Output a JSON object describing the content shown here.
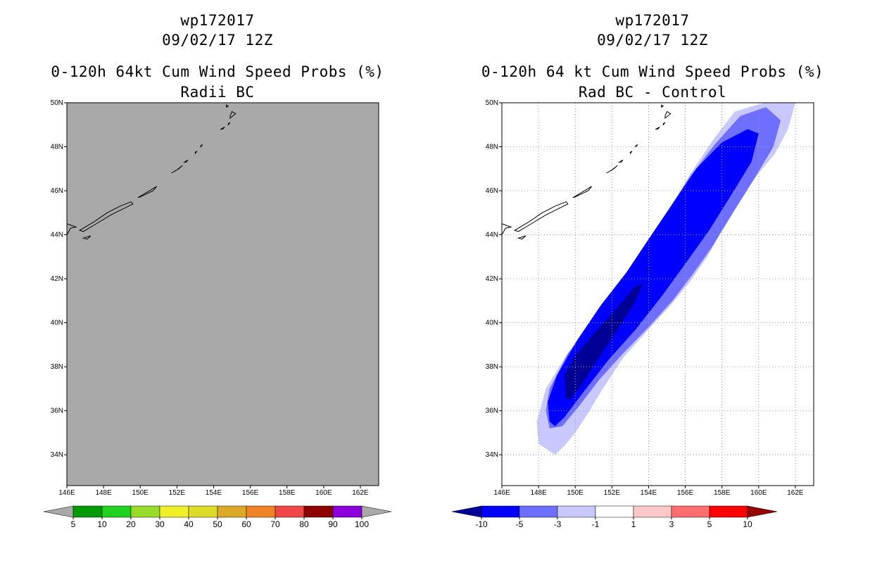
{
  "chart_data": [
    {
      "type": "heatmap",
      "storm_id": "wp172017",
      "date_time": "09/02/17 12Z",
      "title": "0-120h 64kt Cum Wind Speed Probs (%)",
      "subtitle": "Radii BC",
      "xlabel": "",
      "ylabel": "",
      "x_ticks": [
        "146E",
        "148E",
        "150E",
        "152E",
        "154E",
        "156E",
        "158E",
        "160E",
        "162E"
      ],
      "y_ticks": [
        "34N",
        "36N",
        "38N",
        "40N",
        "42N",
        "44N",
        "46N",
        "48N",
        "50N"
      ],
      "xlim": [
        146,
        163
      ],
      "ylim": [
        32.6,
        50
      ],
      "grid": false,
      "colorbar": {
        "labels": [
          "5",
          "10",
          "20",
          "30",
          "40",
          "50",
          "60",
          "70",
          "80",
          "90",
          "100"
        ],
        "colors": [
          "#049a04",
          "#1ed21e",
          "#96dc28",
          "#f0f028",
          "#dcdc28",
          "#dcaa28",
          "#f08228",
          "#f04646",
          "#8c0000",
          "#8c00dc"
        ]
      },
      "field": "uniform missing (gray)",
      "missing_color": "#a9a9a9"
    },
    {
      "type": "heatmap",
      "storm_id": "wp172017",
      "date_time": "09/02/17 12Z",
      "title": "0-120h 64 kt Cum Wind Speed Probs (%)",
      "subtitle": "Rad BC - Control",
      "xlabel": "",
      "ylabel": "",
      "x_ticks": [
        "146E",
        "148E",
        "150E",
        "152E",
        "154E",
        "156E",
        "158E",
        "160E",
        "162E"
      ],
      "y_ticks": [
        "34N",
        "36N",
        "38N",
        "40N",
        "42N",
        "44N",
        "46N",
        "48N",
        "50N"
      ],
      "xlim": [
        146,
        163
      ],
      "ylim": [
        32.6,
        50
      ],
      "grid": true,
      "colorbar": {
        "labels": [
          "-10",
          "-5",
          "-3",
          "-1",
          "1",
          "3",
          "5",
          "10"
        ],
        "colors": [
          "#000096",
          "#0000ff",
          "#6e6eff",
          "#c8c8ff",
          "#ffffff",
          "#ffc8c8",
          "#ff6e6e",
          "#ff0000",
          "#960000"
        ]
      },
      "contours": [
        {
          "level": "-1",
          "color": "#c8c8ff",
          "points": [
            [
              148.9,
              34.0
            ],
            [
              148.0,
              34.5
            ],
            [
              147.9,
              35.5
            ],
            [
              148.4,
              37.0
            ],
            [
              149.5,
              38.5
            ],
            [
              150.9,
              40.0
            ],
            [
              152.4,
              41.8
            ],
            [
              153.7,
              43.3
            ],
            [
              155.0,
              45.0
            ],
            [
              156.3,
              46.8
            ],
            [
              157.5,
              48.3
            ],
            [
              158.7,
              49.6
            ],
            [
              160.3,
              50.0
            ],
            [
              162.0,
              50.0
            ],
            [
              161.6,
              48.8
            ],
            [
              160.9,
              47.7
            ],
            [
              159.9,
              46.7
            ],
            [
              158.9,
              45.5
            ],
            [
              158.0,
              44.2
            ],
            [
              157.2,
              43.0
            ],
            [
              156.2,
              41.8
            ],
            [
              155.2,
              40.8
            ],
            [
              154.0,
              39.7
            ],
            [
              152.6,
              38.4
            ],
            [
              151.5,
              37.0
            ],
            [
              150.7,
              35.9
            ],
            [
              150.0,
              35.0
            ],
            [
              149.4,
              34.4
            ]
          ]
        },
        {
          "level": "-3",
          "color": "#6e6eff",
          "points": [
            [
              148.6,
              35.2
            ],
            [
              148.4,
              36.0
            ],
            [
              148.6,
              37.0
            ],
            [
              149.6,
              38.6
            ],
            [
              151.0,
              40.2
            ],
            [
              152.5,
              41.9
            ],
            [
              153.8,
              43.4
            ],
            [
              155.0,
              45.0
            ],
            [
              156.3,
              46.7
            ],
            [
              157.6,
              48.1
            ],
            [
              159.0,
              49.4
            ],
            [
              160.4,
              49.8
            ],
            [
              161.2,
              49.2
            ],
            [
              160.8,
              48.0
            ],
            [
              159.8,
              46.6
            ],
            [
              158.6,
              45.0
            ],
            [
              157.5,
              43.5
            ],
            [
              156.4,
              42.2
            ],
            [
              155.3,
              41.0
            ],
            [
              154.0,
              39.8
            ],
            [
              152.6,
              38.6
            ],
            [
              151.3,
              37.4
            ],
            [
              150.2,
              36.2
            ],
            [
              149.3,
              35.3
            ]
          ]
        },
        {
          "level": "-5",
          "color": "#0000ff",
          "points": [
            [
              148.6,
              35.5
            ],
            [
              148.5,
              36.4
            ],
            [
              149.0,
              37.6
            ],
            [
              150.1,
              39.2
            ],
            [
              151.4,
              40.8
            ],
            [
              152.8,
              42.3
            ],
            [
              154.0,
              43.8
            ],
            [
              155.3,
              45.4
            ],
            [
              156.6,
              47.0
            ],
            [
              158.0,
              48.2
            ],
            [
              159.4,
              48.8
            ],
            [
              160.0,
              48.6
            ],
            [
              159.6,
              47.3
            ],
            [
              158.5,
              45.8
            ],
            [
              157.3,
              44.2
            ],
            [
              156.1,
              42.8
            ],
            [
              154.8,
              41.3
            ],
            [
              153.3,
              39.7
            ],
            [
              151.8,
              38.3
            ],
            [
              150.4,
              36.8
            ],
            [
              149.4,
              35.7
            ],
            [
              148.9,
              35.3
            ]
          ]
        },
        {
          "level": "-10",
          "color": "#000096",
          "points": [
            [
              149.5,
              36.6
            ],
            [
              149.4,
              37.6
            ],
            [
              150.0,
              38.5
            ],
            [
              151.0,
              39.5
            ],
            [
              152.2,
              40.6
            ],
            [
              153.2,
              41.6
            ],
            [
              153.7,
              41.8
            ],
            [
              153.3,
              41.0
            ],
            [
              152.4,
              39.8
            ],
            [
              151.2,
              38.3
            ],
            [
              150.2,
              37.0
            ],
            [
              149.7,
              36.5
            ]
          ]
        }
      ],
      "dark_point": [
        154.0,
        42.4
      ]
    }
  ]
}
